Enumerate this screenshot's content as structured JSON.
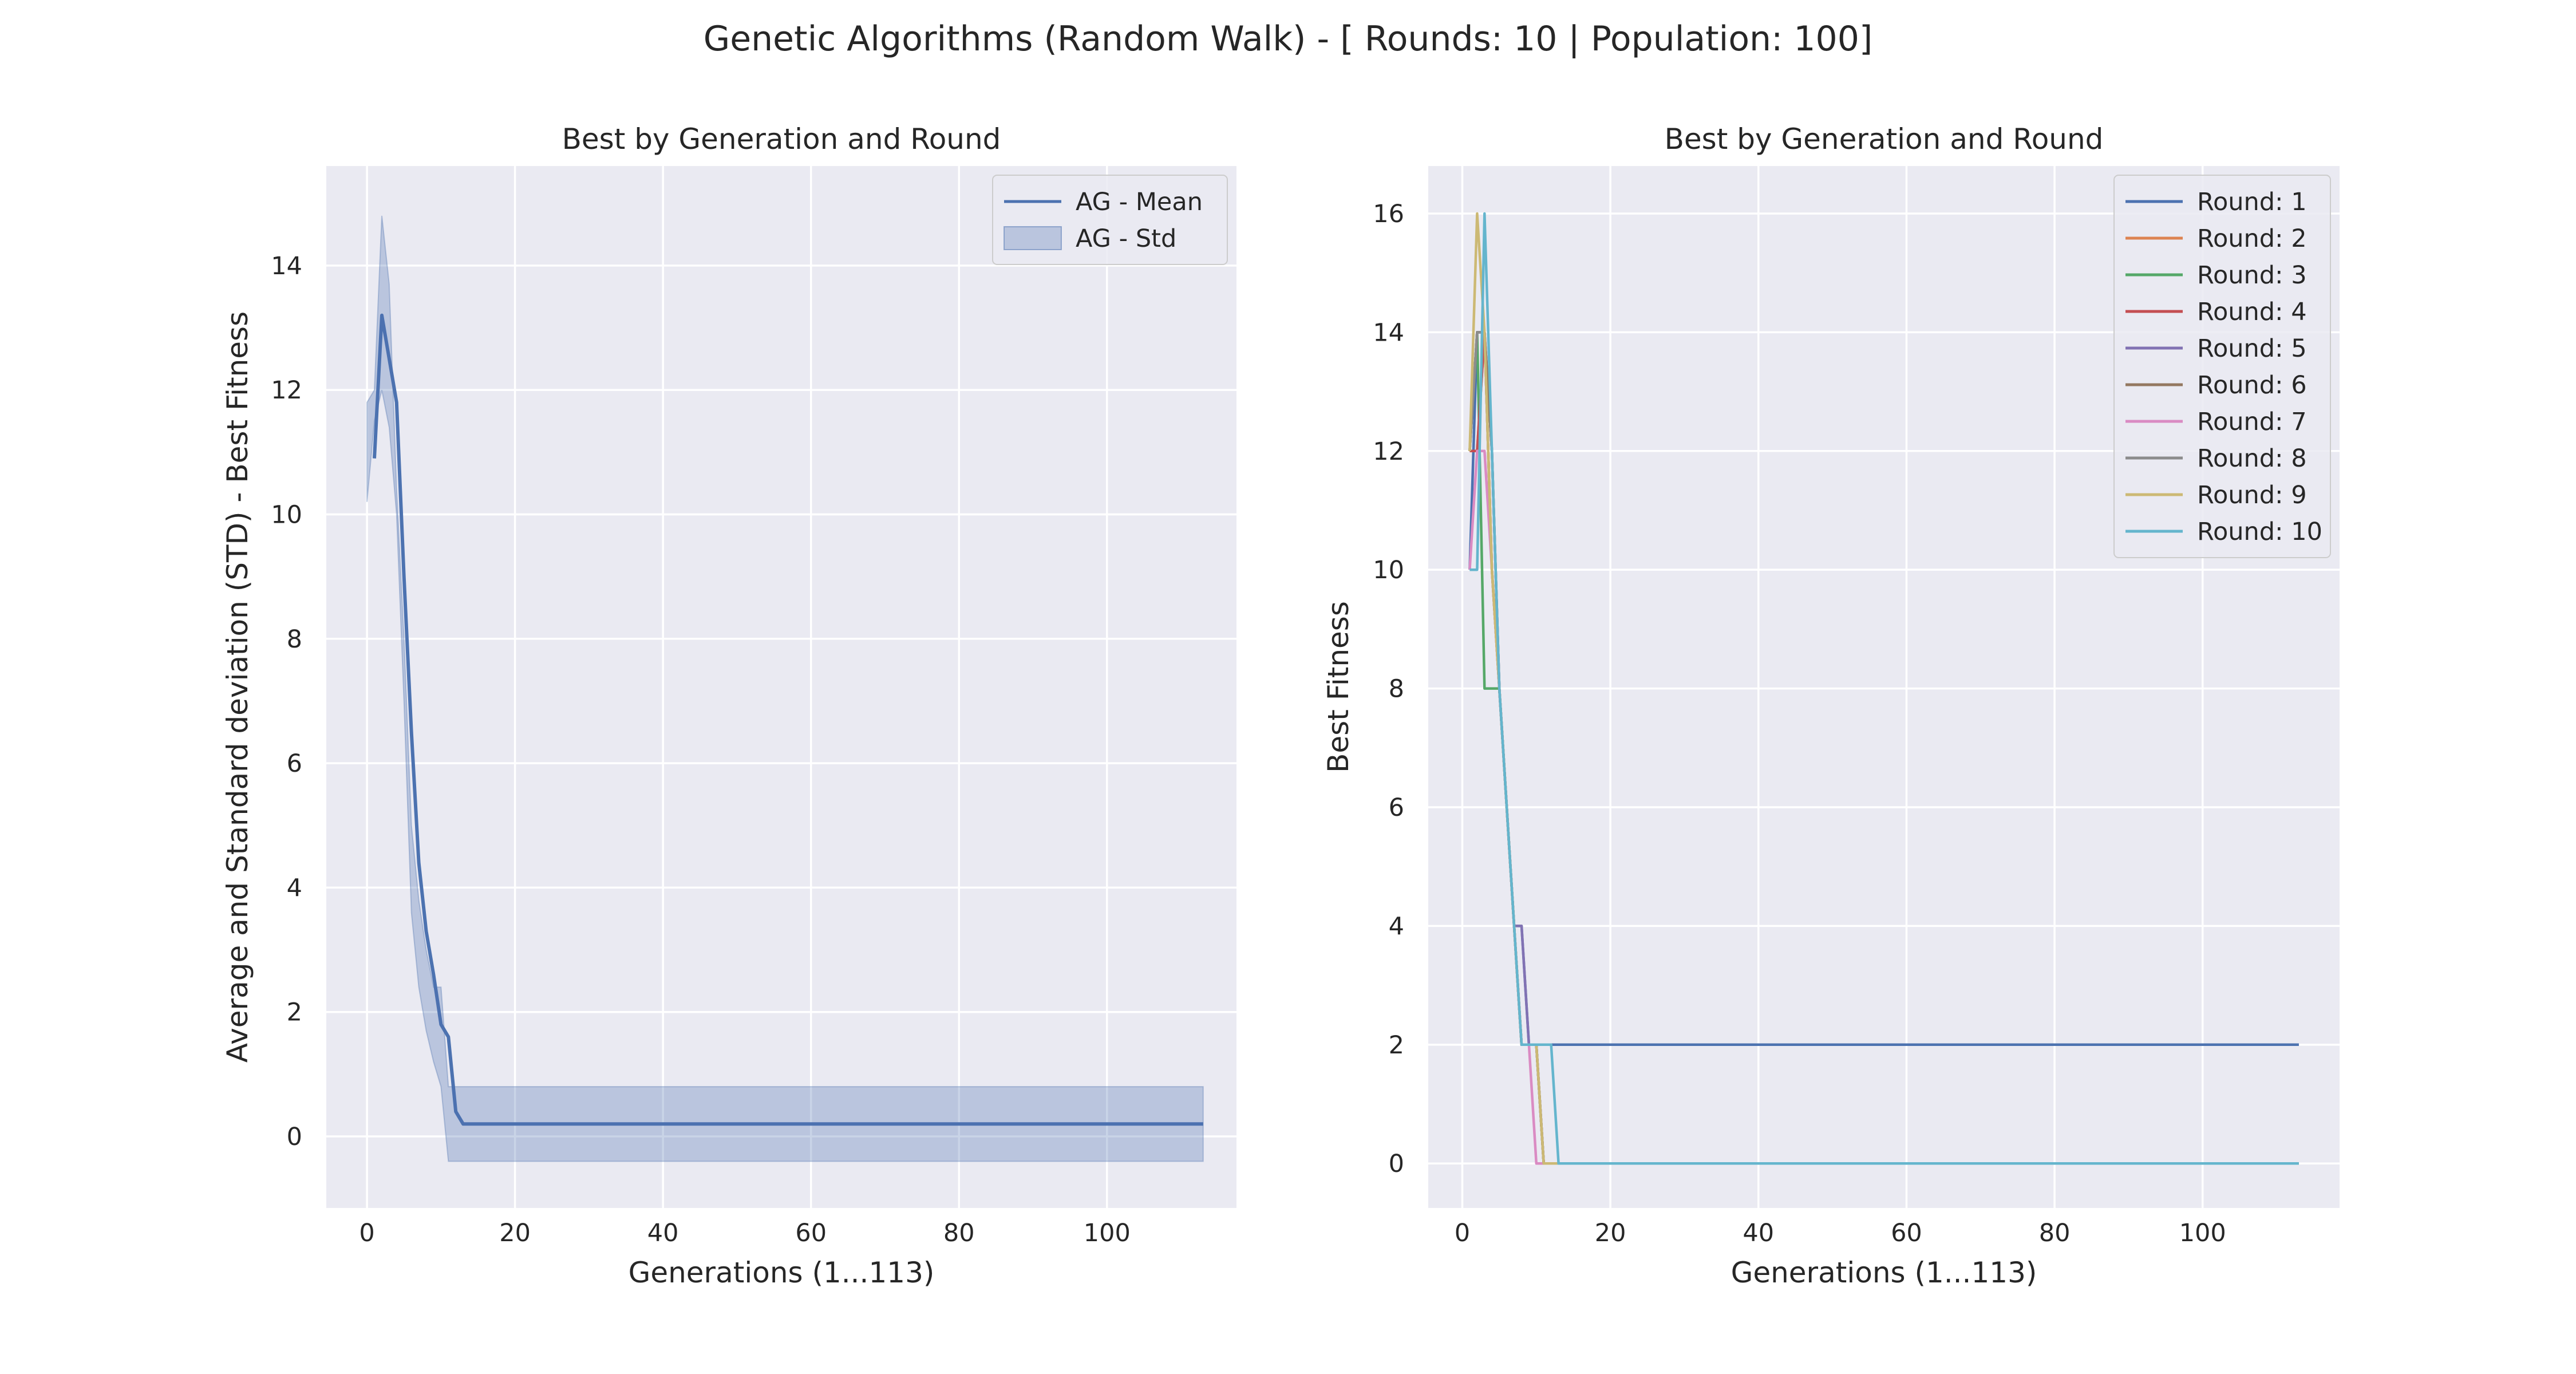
{
  "suptitle": "Genetic Algorithms (Random Walk) - [ Rounds: 10 | Population: 100]",
  "colors": {
    "background": "#ffffff",
    "plot_background": "#eaeaf2",
    "grid": "#ffffff",
    "mean_line": "#4c72b0",
    "std_band": "#4c72b0",
    "text": "#262626"
  },
  "chart_data": [
    {
      "type": "line",
      "title": "Best by Generation and Round",
      "xlabel": "Generations (1...113)",
      "ylabel": "Average and Standard deviation (STD) - Best Fitness",
      "xlim": [
        -5.5,
        117.5
      ],
      "ylim": [
        -1.15,
        15.6
      ],
      "xticks": [
        0,
        20,
        40,
        60,
        80,
        100
      ],
      "yticks": [
        0,
        2,
        4,
        6,
        8,
        10,
        12,
        14
      ],
      "grid": true,
      "legend_position": "top-right",
      "legend": [
        "AG - Mean",
        "AG - Std"
      ],
      "series": [
        {
          "name": "AG - Mean",
          "color": "#4c72b0",
          "kind": "line",
          "x": [
            1,
            2,
            3,
            4,
            5,
            6,
            7,
            8,
            9,
            10,
            11,
            12,
            13,
            113
          ],
          "y": [
            10.9,
            13.2,
            12.5,
            11.8,
            9.0,
            6.5,
            4.4,
            3.3,
            2.6,
            1.8,
            1.6,
            0.4,
            0.2,
            0.2
          ]
        },
        {
          "name": "AG - Std",
          "color": "#4c72b0",
          "kind": "band",
          "x": [
            0,
            1,
            2,
            3,
            4,
            5,
            6,
            7,
            8,
            9,
            10,
            11,
            12,
            13,
            113
          ],
          "lower": [
            10.2,
            11.5,
            12.0,
            11.4,
            10.0,
            7.0,
            3.6,
            2.4,
            1.7,
            1.2,
            0.8,
            -0.4,
            -0.4,
            -0.4,
            -0.4
          ],
          "upper": [
            11.8,
            12.0,
            14.8,
            13.7,
            10.4,
            8.0,
            5.0,
            3.8,
            3.0,
            2.4,
            2.4,
            0.8,
            0.8,
            0.8,
            0.8
          ]
        }
      ]
    },
    {
      "type": "line",
      "title": "Best by Generation and Round",
      "xlabel": "Generations (1...113)",
      "ylabel": "Best Fitness",
      "xlim": [
        -4.6,
        118.5
      ],
      "ylim": [
        -0.75,
        16.8
      ],
      "xticks": [
        0,
        20,
        40,
        60,
        80,
        100
      ],
      "yticks": [
        0,
        2,
        4,
        6,
        8,
        10,
        12,
        14,
        16
      ],
      "grid": true,
      "legend_position": "top-right",
      "series": [
        {
          "name": "Round: 1",
          "color": "#4c72b0",
          "x": [
            1,
            2,
            3,
            4,
            5,
            6,
            7,
            8,
            9,
            10,
            11,
            113
          ],
          "y": [
            10,
            14,
            14,
            12,
            8,
            6,
            4,
            4,
            2,
            2,
            2,
            2
          ]
        },
        {
          "name": "Round: 2",
          "color": "#dd8452",
          "x": [
            1,
            2,
            3,
            4,
            5,
            6,
            7,
            8,
            9,
            10,
            11,
            12,
            113
          ],
          "y": [
            12,
            12,
            14,
            10,
            8,
            6,
            4,
            2,
            2,
            2,
            0,
            0,
            0
          ]
        },
        {
          "name": "Round: 3",
          "color": "#55a868",
          "x": [
            1,
            2,
            3,
            4,
            5,
            6,
            7,
            8,
            9,
            10,
            11,
            12,
            113
          ],
          "y": [
            12,
            14,
            8,
            8,
            8,
            6,
            4,
            2,
            2,
            2,
            0,
            0,
            0
          ]
        },
        {
          "name": "Round: 4",
          "color": "#c44e52",
          "x": [
            1,
            2,
            3,
            4,
            5,
            6,
            7,
            8,
            9,
            10,
            11,
            12,
            113
          ],
          "y": [
            12,
            12,
            14,
            10,
            8,
            6,
            4,
            2,
            2,
            2,
            0,
            0,
            0
          ]
        },
        {
          "name": "Round: 5",
          "color": "#8172b3",
          "x": [
            1,
            2,
            3,
            4,
            5,
            6,
            7,
            8,
            9,
            10,
            11,
            12,
            113
          ],
          "y": [
            12,
            14,
            14,
            12,
            8,
            6,
            4,
            4,
            2,
            2,
            0,
            0,
            0
          ]
        },
        {
          "name": "Round: 6",
          "color": "#937860",
          "x": [
            1,
            2,
            3,
            4,
            5,
            6,
            7,
            8,
            9,
            10,
            11,
            12,
            113
          ],
          "y": [
            12,
            14,
            14,
            12,
            8,
            6,
            4,
            2,
            2,
            2,
            0,
            0,
            0
          ]
        },
        {
          "name": "Round: 7",
          "color": "#da8bc3",
          "x": [
            1,
            2,
            3,
            4,
            5,
            6,
            7,
            8,
            9,
            10,
            11,
            113
          ],
          "y": [
            10,
            12,
            12,
            10,
            8,
            6,
            4,
            2,
            2,
            0,
            0,
            0
          ]
        },
        {
          "name": "Round: 8",
          "color": "#8c8c8c",
          "x": [
            1,
            2,
            3,
            4,
            5,
            6,
            7,
            8,
            9,
            10,
            11,
            12,
            113
          ],
          "y": [
            12,
            14,
            14,
            10,
            8,
            6,
            4,
            2,
            2,
            2,
            0,
            0,
            0
          ]
        },
        {
          "name": "Round: 9",
          "color": "#ccb974",
          "x": [
            1,
            2,
            3,
            4,
            5,
            6,
            7,
            8,
            9,
            10,
            11,
            12,
            113
          ],
          "y": [
            12,
            16,
            14,
            10,
            8,
            6,
            4,
            2,
            2,
            2,
            0,
            0,
            0
          ]
        },
        {
          "name": "Round: 10",
          "color": "#64b5cd",
          "x": [
            1,
            2,
            3,
            4,
            5,
            6,
            7,
            8,
            9,
            10,
            11,
            12,
            13,
            113
          ],
          "y": [
            10,
            10,
            16,
            12,
            8,
            6,
            4,
            2,
            2,
            2,
            2,
            2,
            0,
            0
          ]
        }
      ]
    }
  ]
}
